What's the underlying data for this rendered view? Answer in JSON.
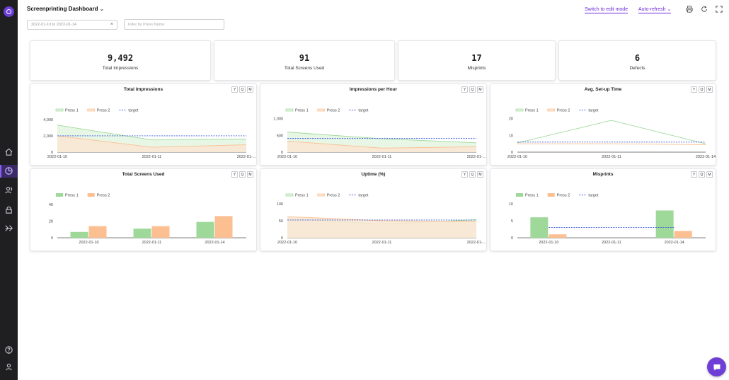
{
  "app": {
    "title": "Screenprinting Dashboard",
    "date_range_placeholder": "2022-01-10 to 2022-01-14",
    "filter_placeholder": "Filter by Press Name",
    "edit_mode_label": "Switch to edit mode",
    "auto_refresh_label": "Auto-refresh"
  },
  "sidebar": {
    "icons": [
      "logo-icon",
      "home-icon",
      "dashboard-icon",
      "users-icon",
      "lock-icon",
      "share-icon",
      "help-icon",
      "user-icon"
    ],
    "active": "dashboard-icon"
  },
  "toolbar_icons": [
    "print-icon",
    "refresh-icon",
    "fullscreen-icon"
  ],
  "kpis": [
    {
      "value": "9,492",
      "label": "Total Impressions"
    },
    {
      "value": "91",
      "label": "Total Screens Used"
    },
    {
      "value": "17",
      "label": "Misprints"
    },
    {
      "value": "6",
      "label": "Defects"
    }
  ],
  "period_buttons": [
    "Y",
    "Q",
    "M"
  ],
  "colors": {
    "press1": "#9ed99a",
    "press1_fill": "#e3f4e1",
    "press2": "#fbbf91",
    "press2_fill": "#f9e6d4",
    "target": "#3b5bdb",
    "accent": "#6d3fd6",
    "sidebar_bg": "#1f1f22"
  },
  "chart_data": [
    {
      "type": "area",
      "title": "Total Impressions",
      "categories": [
        "2022-01-10",
        "2022-01-11",
        "2022-01-..."
      ],
      "legend": [
        "Press 1",
        "Press 2",
        "target"
      ],
      "yticks": [
        "0",
        "2,000",
        "4,000"
      ],
      "ylim": [
        0,
        4500
      ],
      "series": [
        {
          "name": "Press 1",
          "values": [
            3300,
            1500,
            1600
          ]
        },
        {
          "name": "Press 2",
          "values": [
            2000,
            600,
            900
          ]
        },
        {
          "name": "target",
          "values": [
            2000,
            2000,
            2000
          ],
          "dashed": true
        }
      ]
    },
    {
      "type": "area",
      "title": "Impressions per Hour",
      "categories": [
        "2022-01-10",
        "2022-01-11",
        "2022-01-..."
      ],
      "legend": [
        "Press 1",
        "Press 2",
        "target"
      ],
      "yticks": [
        "0",
        "500",
        "1,000"
      ],
      "ylim": [
        0,
        1100
      ],
      "series": [
        {
          "name": "Press 1",
          "values": [
            600,
            400,
            280
          ]
        },
        {
          "name": "Press 2",
          "values": [
            330,
            120,
            160
          ]
        },
        {
          "name": "target",
          "values": [
            410,
            410,
            410
          ],
          "dashed": true
        }
      ]
    },
    {
      "type": "line",
      "title": "Avg. Set-up Time",
      "categories": [
        "2022-01-10",
        "2022-01-11",
        "2022-01-14"
      ],
      "legend": [
        "Press 1",
        "Press 2",
        "target"
      ],
      "yticks": [
        "0",
        "10",
        "20"
      ],
      "ylim": [
        0,
        22
      ],
      "series": [
        {
          "name": "Press 1",
          "values": [
            5.5,
            19,
            5
          ]
        },
        {
          "name": "Press 2",
          "values": [
            5,
            5,
            4.5
          ]
        },
        {
          "name": "target",
          "values": [
            6,
            6,
            6
          ],
          "dashed": true
        }
      ]
    },
    {
      "type": "bar",
      "title": "Total Screens Used",
      "categories": [
        "2022-01-10",
        "2022-01-11",
        "2022-01-14"
      ],
      "legend": [
        "Press 1",
        "Press 2"
      ],
      "yticks": [
        "0",
        "20",
        "40"
      ],
      "ylim": [
        0,
        45
      ],
      "series": [
        {
          "name": "Press 1",
          "values": [
            7,
            11,
            19
          ]
        },
        {
          "name": "Press 2",
          "values": [
            14,
            14,
            26
          ]
        }
      ]
    },
    {
      "type": "area",
      "title": "Uptime (%)",
      "categories": [
        "2022-01-10",
        "2022-01-11",
        "2022-01-..."
      ],
      "legend": [
        "Press 1",
        "Press 2",
        "target"
      ],
      "yticks": [
        "0",
        "50",
        "100"
      ],
      "ylim": [
        0,
        110
      ],
      "series": [
        {
          "name": "Press 1",
          "values": [
            57,
            40,
            53
          ]
        },
        {
          "name": "Press 2",
          "values": [
            62,
            50,
            48
          ]
        },
        {
          "name": "target",
          "values": [
            52,
            52,
            52
          ],
          "dashed": true
        }
      ]
    },
    {
      "type": "bar",
      "title": "Misprints",
      "categories": [
        "2022-01-10",
        "2022-01-11",
        "2022-01-14"
      ],
      "legend": [
        "Press 1",
        "Press 2",
        "target"
      ],
      "yticks": [
        "0",
        "5",
        "10"
      ],
      "ylim": [
        0,
        11
      ],
      "series": [
        {
          "name": "Press 1",
          "values": [
            6,
            0,
            8
          ]
        },
        {
          "name": "Press 2",
          "values": [
            1,
            0,
            2
          ]
        },
        {
          "name": "target",
          "values": [
            3,
            3,
            3
          ],
          "dashed": true
        }
      ]
    }
  ]
}
